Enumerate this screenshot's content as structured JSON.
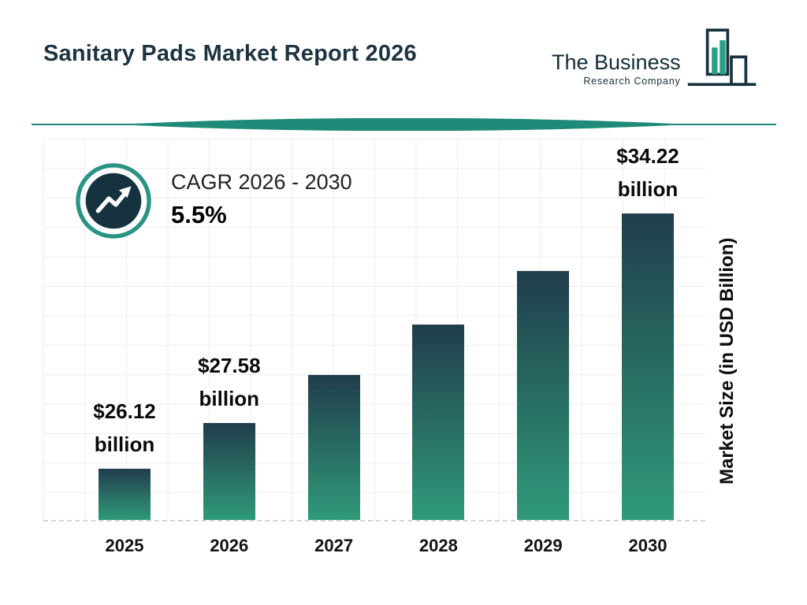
{
  "header": {
    "title": "Sanitary Pads Market Report 2026",
    "logo": {
      "line1": "The Business",
      "line2": "Research Company"
    }
  },
  "cagr": {
    "label": "CAGR 2026 - 2030",
    "value": "5.5%"
  },
  "chart_data": {
    "type": "bar",
    "title": "Sanitary Pads Market Report 2026",
    "categories": [
      "2025",
      "2026",
      "2027",
      "2028",
      "2029",
      "2030"
    ],
    "values": [
      26.12,
      27.58,
      29.1,
      30.7,
      32.39,
      34.22
    ],
    "value_labels": [
      {
        "amount": "$26.12",
        "unit": "billion"
      },
      {
        "amount": "$27.58",
        "unit": "billion"
      },
      null,
      null,
      null,
      {
        "amount": "$34.22",
        "unit": "billion"
      }
    ],
    "xlabel": "",
    "ylabel": "Market Size (in USD Billion)",
    "ylim": [
      24.5,
      36
    ],
    "grid": true,
    "legend": false,
    "colors": {
      "bar_top": "#203d4b",
      "bar_bottom": "#2f9a79",
      "accent": "#1e8a77",
      "dark": "#16323f"
    }
  }
}
